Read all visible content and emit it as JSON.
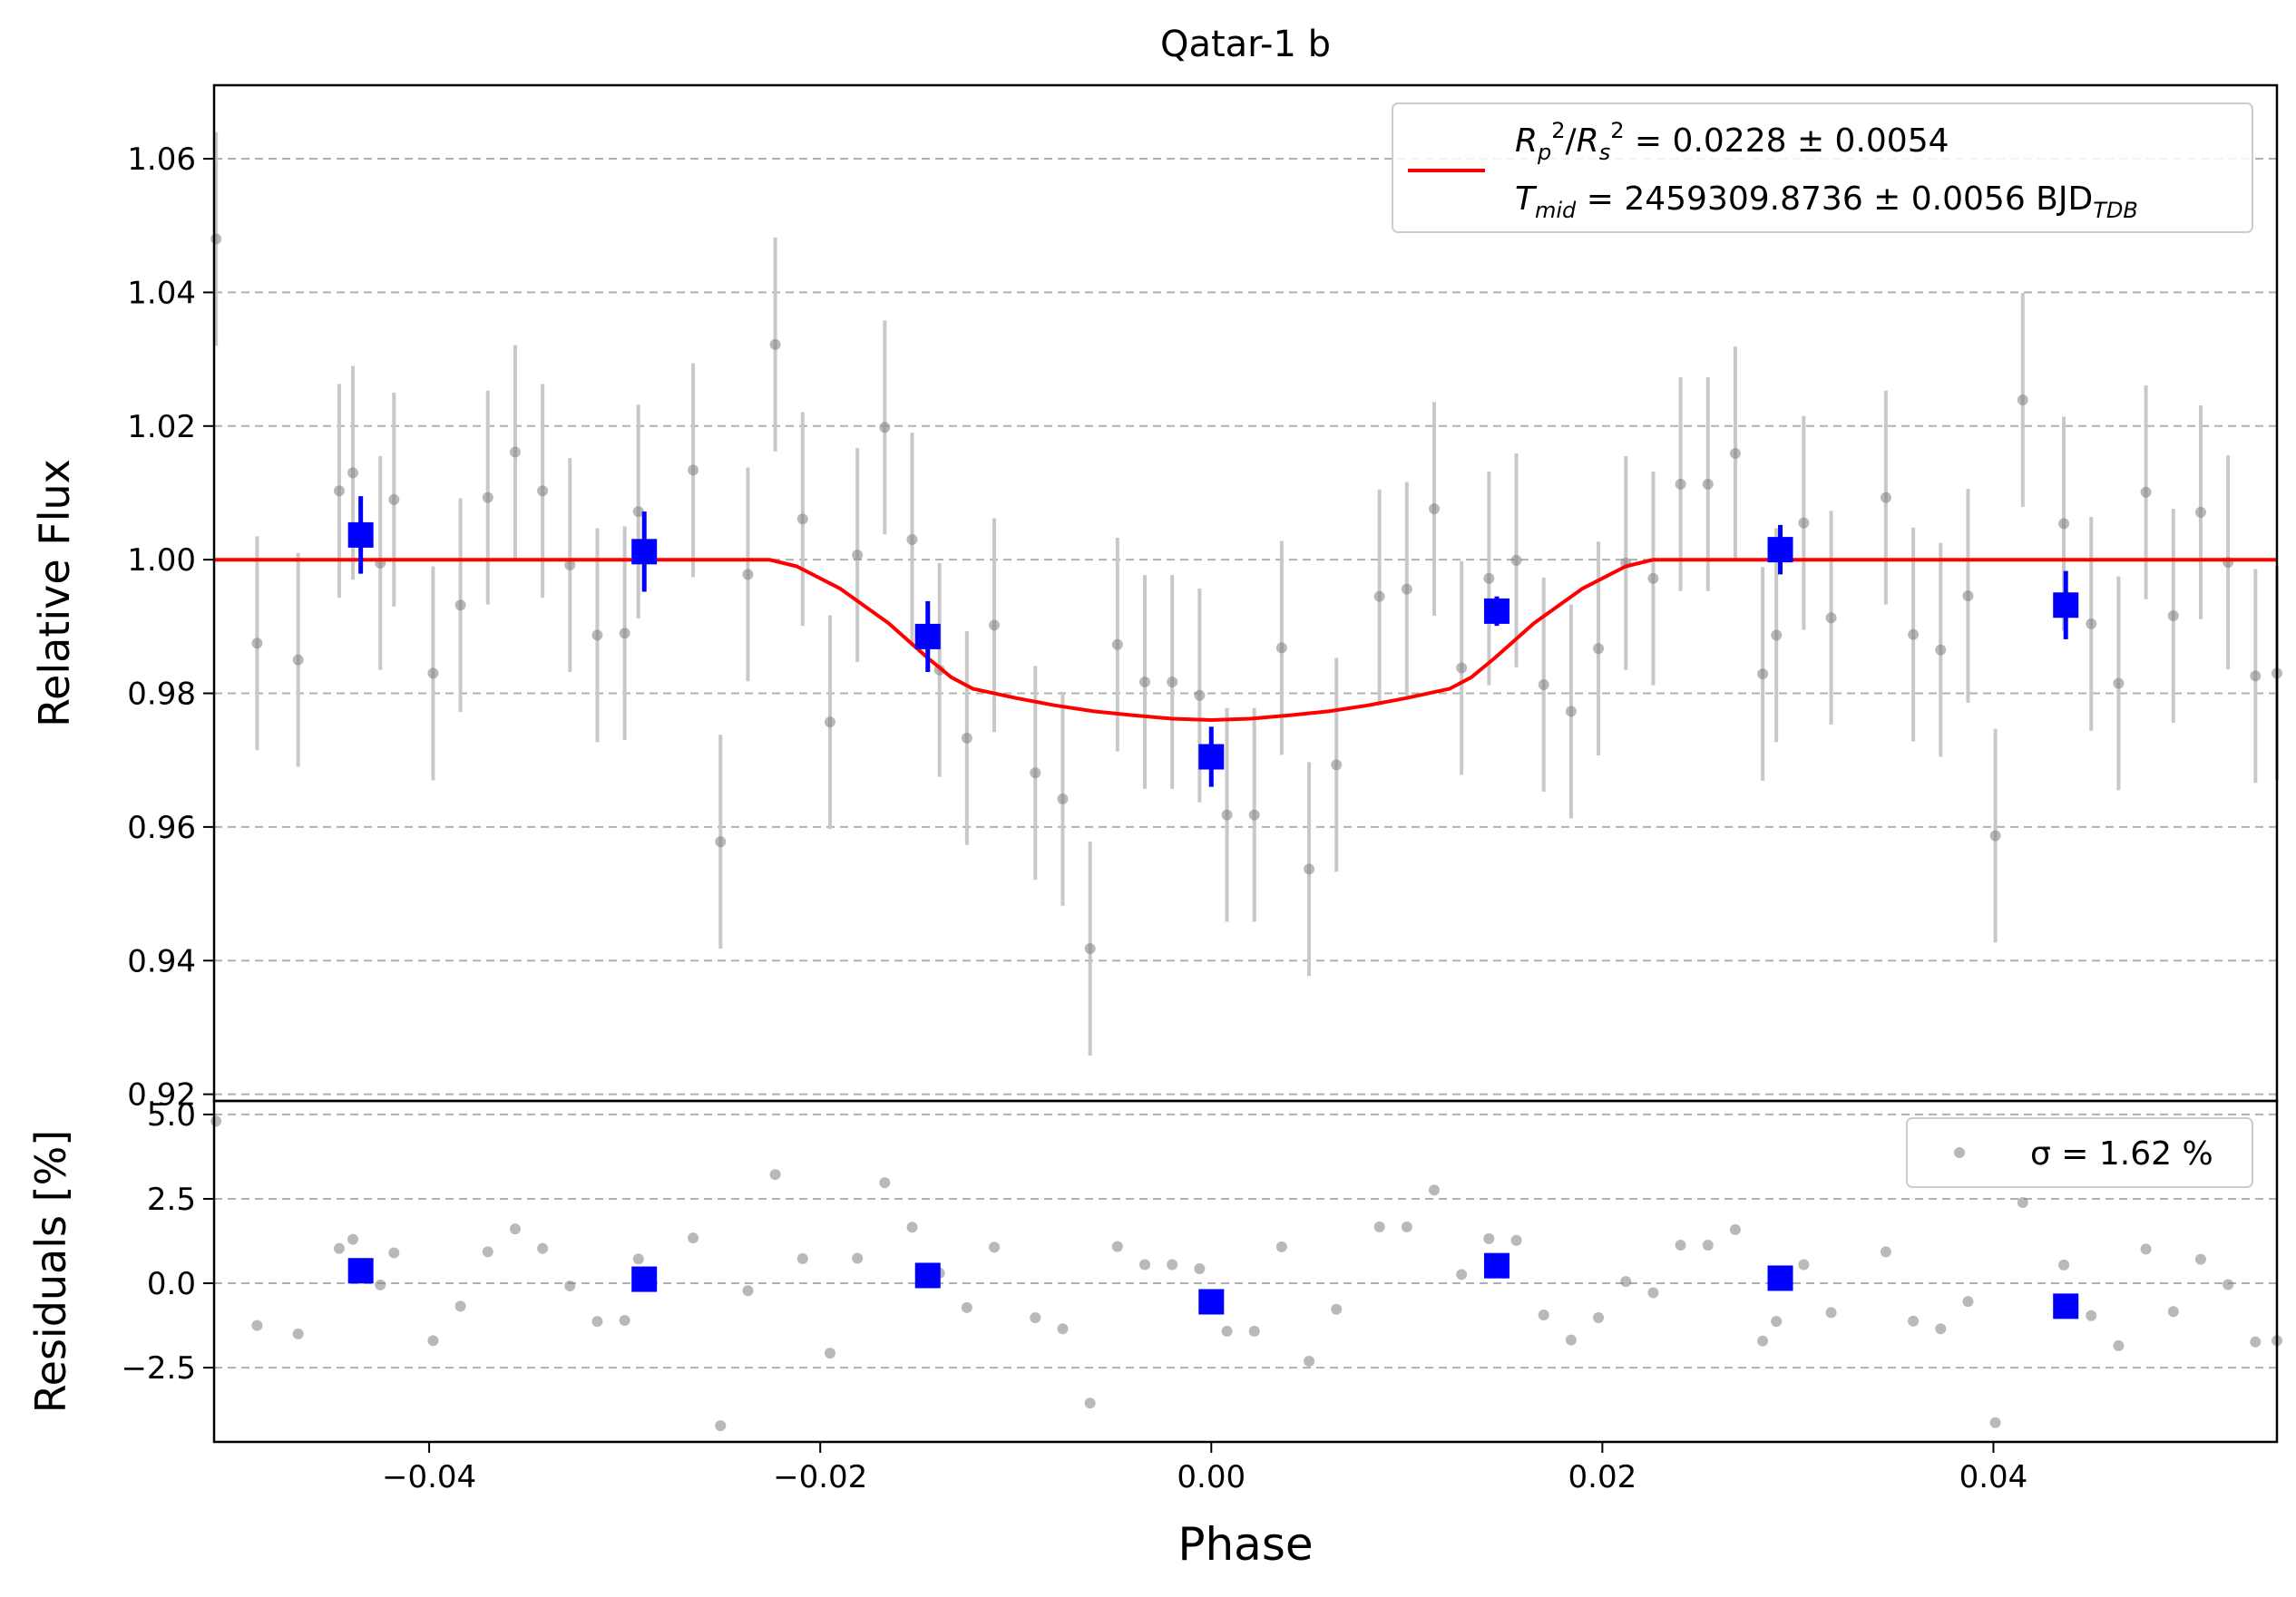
{
  "chart_data": [
    {
      "type": "scatter",
      "title": "Qatar-1 b",
      "xlabel": "Phase",
      "ylabel": "Relative Flux",
      "xlim": [
        -0.051,
        0.0545
      ],
      "ylim": [
        0.919,
        1.071
      ],
      "xticks": [
        -0.04,
        -0.02,
        0.0,
        0.02,
        0.04
      ],
      "xtick_labels": [
        "−0.04",
        "−0.02",
        "0.00",
        "0.02",
        "0.04"
      ],
      "yticks": [
        0.92,
        0.94,
        0.96,
        0.98,
        1.0,
        1.02,
        1.04,
        1.06
      ],
      "ytick_labels": [
        "0.92",
        "0.94",
        "0.96",
        "0.98",
        "1.00",
        "1.02",
        "1.04",
        "1.06"
      ],
      "grid": "horizontal dashed",
      "legend": {
        "placement": "top-right",
        "line1_label": "R_p^2/R_s^2 = 0.0228 ± 0.0054",
        "line2_label": "T_mid = 2459309.8736 ± 0.0056 BJD_TDB"
      },
      "colors": {
        "raw": "#808080",
        "raw_err": "#c8c8c8",
        "binned": "#0000ff",
        "model": "#ff0000"
      },
      "series": [
        {
          "style": "raw",
          "x": [
            -0.0509,
            -0.0488,
            -0.0467,
            -0.0446,
            -0.0439,
            -0.0425,
            -0.0418,
            -0.0398,
            -0.0384,
            -0.037,
            -0.0356,
            -0.0342,
            -0.0328,
            -0.0314,
            -0.03,
            -0.0293,
            -0.0265,
            -0.0251,
            -0.0237,
            -0.0223,
            -0.0209,
            -0.0195,
            -0.0181,
            -0.0167,
            -0.0153,
            -0.0139,
            -0.0125,
            -0.0111,
            -0.009,
            -0.0076,
            -0.0062,
            -0.0048,
            -0.0034,
            -0.002,
            -0.0006,
            0.0008,
            0.0022,
            0.0036,
            0.005,
            0.0064,
            0.0086,
            0.01,
            0.0114,
            0.0128,
            0.0142,
            0.0156,
            0.017,
            0.0184,
            0.0198,
            0.0212,
            0.0226,
            0.024,
            0.0254,
            0.0268,
            0.0282,
            0.0289,
            0.0303,
            0.0317,
            0.0345,
            0.0359,
            0.0373,
            0.0387,
            0.0401,
            0.0415,
            0.0436,
            0.045,
            0.0464,
            0.0478,
            0.0492,
            0.0506,
            0.052,
            0.0534,
            0.0545
          ],
          "y": [
            1.048,
            0.9875,
            0.985,
            1.0103,
            1.013,
            0.9995,
            1.009,
            0.983,
            0.9932,
            1.0093,
            1.0161,
            1.0103,
            0.9992,
            0.9887,
            0.989,
            1.0072,
            1.0134,
            0.9578,
            0.9978,
            1.0322,
            1.0061,
            0.9757,
            1.0007,
            1.0198,
            1.003,
            0.9835,
            0.9733,
            0.9902,
            0.9681,
            0.9642,
            0.9418,
            0.9873,
            0.9817,
            0.9817,
            0.9797,
            0.9618,
            0.9618,
            0.9868,
            0.9537,
            0.9693,
            0.9945,
            0.9956,
            1.0076,
            0.9838,
            0.9972,
            0.9999,
            0.9813,
            0.9773,
            0.9867,
            0.9995,
            0.9972,
            1.0113,
            1.0113,
            1.0159,
            0.9829,
            0.9887,
            1.0055,
            0.9913,
            1.0093,
            0.9888,
            0.9865,
            0.9946,
            0.9587,
            1.0239,
            1.0054,
            0.9904,
            0.9815,
            1.0101,
            0.9916,
            1.0071,
            0.9996,
            0.9826,
            0.983
          ],
          "yerr": 0.016
        },
        {
          "style": "binned",
          "x": [
            -0.0435,
            -0.029,
            -0.0145,
            0.0,
            0.0146,
            0.0291,
            0.0437
          ],
          "y": [
            1.0037,
            1.0012,
            0.9885,
            0.9705,
            0.9923,
            1.0015,
            0.9932
          ],
          "yerr": [
            0.0058,
            0.006,
            0.0053,
            0.0045,
            0.0022,
            0.0037,
            0.0051
          ]
        },
        {
          "style": "model",
          "x": [
            -0.051,
            -0.0226,
            -0.0212,
            -0.019,
            -0.0165,
            -0.0145,
            -0.0133,
            -0.0122,
            -0.01,
            -0.008,
            -0.006,
            -0.004,
            -0.002,
            0.0,
            0.002,
            0.004,
            0.006,
            0.008,
            0.01,
            0.0122,
            0.0133,
            0.0145,
            0.0165,
            0.019,
            0.0212,
            0.0226,
            0.0545
          ],
          "y": [
            1.0,
            1.0,
            0.999,
            0.9957,
            0.9905,
            0.9853,
            0.9824,
            0.9807,
            0.9793,
            0.9782,
            0.9773,
            0.9767,
            0.9762,
            0.976,
            0.9762,
            0.9767,
            0.9773,
            0.9782,
            0.9793,
            0.9807,
            0.9824,
            0.9853,
            0.9905,
            0.9957,
            0.999,
            1.0,
            1.0
          ]
        }
      ]
    },
    {
      "type": "scatter",
      "xlabel": "Phase",
      "ylabel": "Residuals [%]",
      "xlim": [
        -0.051,
        0.0545
      ],
      "ylim": [
        -4.7,
        5.4
      ],
      "yticks": [
        -2.5,
        0.0,
        2.5,
        5.0
      ],
      "ytick_labels": [
        "−2.5",
        "0.0",
        "2.5",
        "5.0"
      ],
      "grid": "horizontal dashed",
      "legend": {
        "placement": "top-right",
        "label": "σ = 1.62 %"
      },
      "series": [
        {
          "style": "raw",
          "y": [
            4.8,
            -1.25,
            -1.5,
            1.03,
            1.3,
            -0.05,
            0.9,
            -1.7,
            -0.68,
            0.93,
            1.61,
            1.03,
            -0.08,
            -1.13,
            -1.1,
            0.72,
            1.34,
            -4.22,
            -0.22,
            3.22,
            0.73,
            -2.07,
            0.74,
            2.98,
            1.66,
            0.3,
            -0.72,
            1.07,
            -1.02,
            -1.35,
            -3.55,
            1.09,
            0.55,
            0.55,
            0.43,
            -1.42,
            -1.42,
            1.08,
            -2.31,
            -0.77,
            1.67,
            1.67,
            2.76,
            0.26,
            1.32,
            1.27,
            -0.94,
            -1.68,
            -1.02,
            0.05,
            -0.28,
            1.13,
            1.13,
            1.59,
            -1.71,
            -1.13,
            0.55,
            -0.87,
            0.93,
            -1.12,
            -1.35,
            -0.54,
            -4.13,
            2.39,
            0.54,
            -0.96,
            -1.85,
            1.01,
            -0.84,
            0.71,
            -0.04,
            -1.74,
            -1.7
          ]
        },
        {
          "style": "binned",
          "y": [
            0.37,
            0.12,
            0.23,
            -0.55,
            0.52,
            0.15,
            -0.68
          ]
        }
      ]
    }
  ]
}
